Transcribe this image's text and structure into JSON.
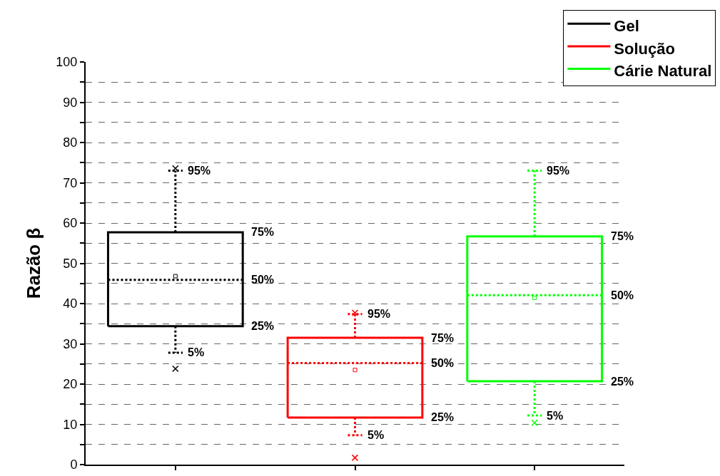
{
  "chart_data": {
    "type": "box",
    "ylabel": "Razão β",
    "categories": [
      null,
      null,
      null
    ],
    "series": [
      {
        "name": "Gel",
        "color": "#000000",
        "boxes": [
          {
            "low": 27.8,
            "q1": 34.4,
            "median": 45.9,
            "q3": 57.7,
            "high": 73.0,
            "mean": 46.8,
            "outliers": [
              73.6,
              23.8
            ]
          },
          null,
          null
        ]
      },
      {
        "name": "Solução",
        "color": "#ff0000",
        "boxes": [
          null,
          {
            "low": 7.3,
            "q1": 11.7,
            "median": 25.2,
            "q3": 31.5,
            "high": 37.4,
            "mean": 23.5,
            "outliers": [
              37.7,
              1.7
            ]
          },
          null
        ]
      },
      {
        "name": "Cárie Natural",
        "color": "#00ff00",
        "boxes": [
          null,
          null,
          {
            "low": 12.2,
            "q1": 20.7,
            "median": 42.1,
            "q3": 56.7,
            "high": 73.0,
            "mean": 41.4,
            "outliers": [
              10.4
            ]
          }
        ]
      }
    ],
    "annotations": [
      "95%",
      "75%",
      "50%",
      "25%",
      "5%",
      "95%",
      "75%",
      "50%",
      "25%",
      "5%",
      "95%",
      "75%",
      "50%",
      "25%",
      "5%"
    ],
    "ylim": [
      0,
      100
    ],
    "yticks": [
      0,
      {
        "value": 5,
        "label": null
      },
      10,
      {
        "value": 15,
        "label": null
      },
      20,
      {
        "value": 25,
        "label": null
      },
      30,
      {
        "value": 35,
        "label": null
      },
      40,
      {
        "value": 45,
        "label": null
      },
      50,
      {
        "value": 55,
        "label": null
      },
      60,
      {
        "value": 65,
        "label": null
      },
      70,
      {
        "value": 75,
        "label": null
      },
      80,
      {
        "value": 85,
        "label": null
      },
      90,
      {
        "value": 95,
        "label": null
      },
      100
    ],
    "grid": "y",
    "legend": "top right",
    "line_style": "dotted",
    "marker": "cross"
  }
}
